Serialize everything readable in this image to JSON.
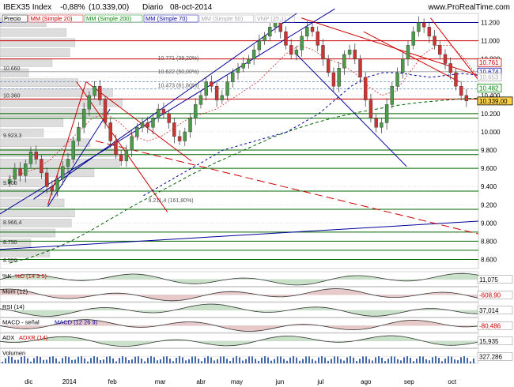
{
  "header": {
    "symbol": "IBEX35 Index",
    "change": "-0,88%",
    "last": "(10.339,00)",
    "period": "Diario",
    "date": "08-oct-2014",
    "brand": "www.ProRealTime.com"
  },
  "legend": [
    {
      "label": "Precio",
      "color": "#000000"
    },
    {
      "label": "MM (Simple 20)",
      "color": "#cc0000"
    },
    {
      "label": "MM (Simple 200)",
      "color": "#008800"
    },
    {
      "label": "MM (Simple 70)",
      "color": "#000099"
    },
    {
      "label": "MM (Simple 50)",
      "color": "#aaaaaa"
    },
    {
      "label": "VNP (25,1)",
      "color": "#aaaaaa"
    }
  ],
  "chart_data": {
    "type": "line",
    "title": "IBEX35 Index",
    "x_labels": [
      "dic",
      "2014",
      "feb",
      "mar",
      "abr",
      "may",
      "jun",
      "jul",
      "ago",
      "sep",
      "oct"
    ],
    "ylim": [
      8500,
      11300
    ],
    "y_ticks": [
      "11.200",
      "11.000",
      "10.800",
      "10.600",
      "10.400",
      "10.200",
      "10.000",
      "9.800",
      "9.600",
      "9.400",
      "9.200",
      "9.000",
      "8.800",
      "8.600"
    ],
    "price": {
      "name": "Precio",
      "values": [
        9480,
        9600,
        9520,
        9650,
        9780,
        9700,
        9550,
        9400,
        9350,
        9480,
        9620,
        9700,
        9900,
        10050,
        10250,
        10400,
        10500,
        10350,
        10100,
        9900,
        9750,
        9680,
        9800,
        9950,
        10050,
        10100,
        10050,
        10150,
        10250,
        10200,
        10100,
        9950,
        9900,
        10000,
        10150,
        10300,
        10400,
        10550,
        10500,
        10350,
        10400,
        10550,
        10650,
        10700,
        10750,
        10800,
        10900,
        11000,
        11050,
        11150,
        11200,
        11100,
        10950,
        10850,
        10900,
        11050,
        11150,
        11100,
        10950,
        10800,
        10650,
        10500,
        10700,
        10850,
        10900,
        10800,
        10600,
        10350,
        10150,
        10050,
        10100,
        10300,
        10500,
        10650,
        10800,
        10950,
        11100,
        11200,
        11150,
        11050,
        10950,
        10850,
        10750,
        10650,
        10500,
        10400,
        10339
      ]
    },
    "ma20": {
      "name": "MM (Simple 20)",
      "values": [
        9500,
        9550,
        9600,
        9700,
        9850,
        10000,
        10150,
        10200,
        10100,
        9950,
        9900,
        9950,
        10050,
        10150,
        10200,
        10250,
        10350,
        10450,
        10550,
        10700,
        10850,
        10950,
        10900,
        10800,
        10750,
        10650,
        10500,
        10400,
        10450,
        10650,
        10850,
        10950,
        10950,
        10800,
        10600
      ]
    },
    "ma200": {
      "name": "MM (Simple 200)",
      "values": [
        8560,
        8620,
        8700,
        8800,
        8920,
        9050,
        9180,
        9300,
        9420,
        9540,
        9650,
        9750,
        9850,
        9950,
        10030,
        10100,
        10160,
        10210,
        10250,
        10290,
        10320,
        10340,
        10360,
        10370
      ]
    },
    "ma70": {
      "name": "MM (Simple 70)",
      "values": [
        9300,
        9400,
        9500,
        9600,
        9700,
        9800,
        9850,
        9900,
        9950,
        10000,
        10100,
        10200,
        10350,
        10500,
        10600,
        10650,
        10650,
        10620,
        10600,
        10620,
        10640,
        10620
      ]
    },
    "horizontal_levels": [
      {
        "value": 11200,
        "label": "11.200"
      },
      {
        "value": 10660,
        "label": "10.660"
      },
      {
        "value": 10360,
        "label": "10.360"
      },
      {
        "value": 9923,
        "label": "9.923,3"
      },
      {
        "value": 9400,
        "label": "9.400"
      },
      {
        "value": 8966,
        "label": "8.966,4"
      },
      {
        "value": 8750,
        "label": "8.750"
      },
      {
        "value": 8550,
        "label": "8.550"
      }
    ],
    "fib_labels": [
      {
        "value": 10771,
        "label": "10.771 (38,20%)"
      },
      {
        "value": 10622,
        "label": "10.622 (50,00%)"
      },
      {
        "value": 10473,
        "label": "10.473 (61,80%)"
      },
      {
        "value": 9211,
        "label": "9.211,4 (161,80%)"
      }
    ],
    "right_labels": [
      {
        "value": 10761,
        "label": "10.761",
        "color": "#cc0000"
      },
      {
        "value": 10674,
        "label": "10.674",
        "color": "#000099"
      },
      {
        "value": 10653,
        "label": "10.653",
        "color": "#aaaaaa"
      },
      {
        "value": 10482,
        "label": "10.482",
        "color": "#008800"
      },
      {
        "value": 10339,
        "label": "10.339,00",
        "color": "#000000"
      }
    ]
  },
  "indicators": [
    {
      "name": "%K",
      "label": "%D (14 3 5)",
      "value": "11,075"
    },
    {
      "name": "Mom (12)",
      "label": "",
      "value": "-608,90"
    },
    {
      "name": "RSI (14)",
      "label": "",
      "value": "37,014"
    },
    {
      "name": "MACD - señal",
      "label": "MACD (12 26 9)",
      "value": "-80,486"
    },
    {
      "name": "ADX",
      "label": "ADXR (14)",
      "value": "15,935"
    },
    {
      "name": "Volumen",
      "label": "",
      "value": "327.286"
    }
  ],
  "colors": {
    "accent_red": "#cc0000",
    "accent_blue": "#000099",
    "accent_green": "#008800",
    "positive_fill": "#88bb88",
    "negative_fill": "#cc8888"
  }
}
